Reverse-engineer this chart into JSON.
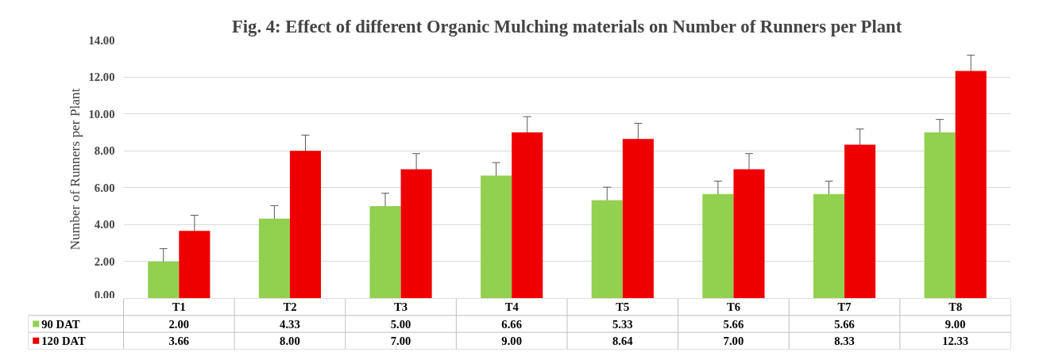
{
  "chart_data": {
    "type": "bar",
    "title": "Fig. 4: Effect of different Organic Mulching materials on Number of Runners per Plant",
    "ylabel": "Number of Runners per Plant",
    "categories": [
      "T1",
      "T2",
      "T3",
      "T4",
      "T5",
      "T6",
      "T7",
      "T8"
    ],
    "series": [
      {
        "name": "90 DAT",
        "color": "#92d050",
        "values": [
          2.0,
          4.33,
          5.0,
          6.66,
          5.33,
          5.66,
          5.66,
          9.0
        ],
        "value_labels": [
          "2.00",
          "4.33",
          "5.00",
          "6.66",
          "5.33",
          "5.66",
          "5.66",
          "9.00"
        ],
        "errors": [
          0.7,
          0.7,
          0.7,
          0.7,
          0.7,
          0.7,
          0.7,
          0.7
        ]
      },
      {
        "name": "120 DAT",
        "color": "#ee0000",
        "values": [
          3.66,
          8.0,
          7.0,
          9.0,
          8.64,
          7.0,
          8.33,
          12.33
        ],
        "value_labels": [
          "3.66",
          "8.00",
          "7.00",
          "9.00",
          "8.64",
          "7.00",
          "8.33",
          "12.33"
        ],
        "errors": [
          0.85,
          0.85,
          0.85,
          0.85,
          0.85,
          0.85,
          0.85,
          0.85
        ]
      }
    ],
    "ylim": [
      0,
      14
    ],
    "yticks": [
      {
        "value": 0,
        "label": "0.00"
      },
      {
        "value": 2,
        "label": "2.00"
      },
      {
        "value": 4,
        "label": "4.00"
      },
      {
        "value": 6,
        "label": "6.00"
      },
      {
        "value": 8,
        "label": "8.00"
      },
      {
        "value": 10,
        "label": "10.00"
      },
      {
        "value": 12,
        "label": "12.00"
      },
      {
        "value": 14,
        "label": "14.00"
      }
    ],
    "grid": "y",
    "legend": "bottom"
  }
}
